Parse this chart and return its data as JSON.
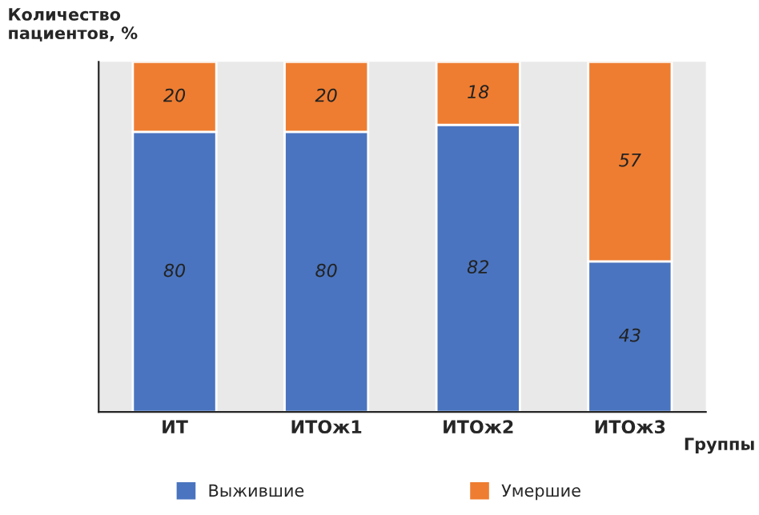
{
  "chart_data": {
    "type": "bar",
    "stacked": true,
    "data_labels": true,
    "tick_labels": "x",
    "legend": "bottom",
    "xlabel": "Группы",
    "ylabel": "Количество\nпациентов, %",
    "categories": [
      "ИТ",
      "ИТОж1",
      "ИТОж2",
      "ИТОж3"
    ],
    "ylim": [
      0,
      100
    ],
    "series": [
      {
        "name": "Выжившие",
        "color": "#4a74bf",
        "values": [
          80,
          80,
          82,
          43
        ]
      },
      {
        "name": "Умершие",
        "color": "#ee7d31",
        "values": [
          20,
          20,
          18,
          57
        ]
      }
    ]
  }
}
